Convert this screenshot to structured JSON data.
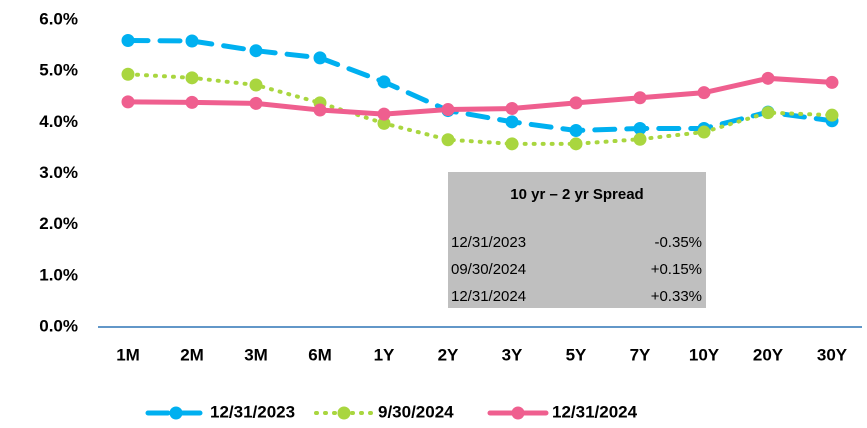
{
  "chart_data": {
    "type": "line",
    "categories": [
      "1M",
      "2M",
      "3M",
      "6M",
      "1Y",
      "2Y",
      "3Y",
      "5Y",
      "7Y",
      "10Y",
      "20Y",
      "30Y"
    ],
    "series": [
      {
        "name": "12/31/2023",
        "color": "#00b0f0",
        "line_style": "dashed",
        "values": [
          5.6,
          5.59,
          5.4,
          5.26,
          4.79,
          4.23,
          4.01,
          3.84,
          3.88,
          3.88,
          4.2,
          4.03
        ]
      },
      {
        "name": "9/30/2024",
        "color": "#a9d63f",
        "line_style": "dotted",
        "values": [
          4.94,
          4.87,
          4.73,
          4.38,
          3.98,
          3.66,
          3.58,
          3.58,
          3.67,
          3.81,
          4.19,
          4.14
        ]
      },
      {
        "name": "12/31/2024",
        "color": "#ef5f8f",
        "line_style": "solid",
        "values": [
          4.4,
          4.39,
          4.37,
          4.24,
          4.16,
          4.25,
          4.27,
          4.38,
          4.48,
          4.58,
          4.86,
          4.78
        ]
      }
    ],
    "ylim": [
      0,
      6
    ],
    "yticks": [
      {
        "value": 0,
        "label": "0.0%"
      },
      {
        "value": 1,
        "label": "1.0%"
      },
      {
        "value": 2,
        "label": "2.0%"
      },
      {
        "value": 3,
        "label": "3.0%"
      },
      {
        "value": 4,
        "label": "4.0%"
      },
      {
        "value": 5,
        "label": "5.0%"
      },
      {
        "value": 6,
        "label": "6.0%"
      }
    ],
    "grid": false,
    "legend": "bottom",
    "annotation": {
      "title": "10 yr – 2 yr Spread",
      "rows": [
        {
          "date": "12/31/2023",
          "value": -0.35,
          "value_label": "-0.35%"
        },
        {
          "date": "09/30/2024",
          "value": 0.15,
          "value_label": "+0.15%"
        },
        {
          "date": "12/31/2024",
          "value": 0.33,
          "value_label": "+0.33%"
        }
      ]
    }
  }
}
